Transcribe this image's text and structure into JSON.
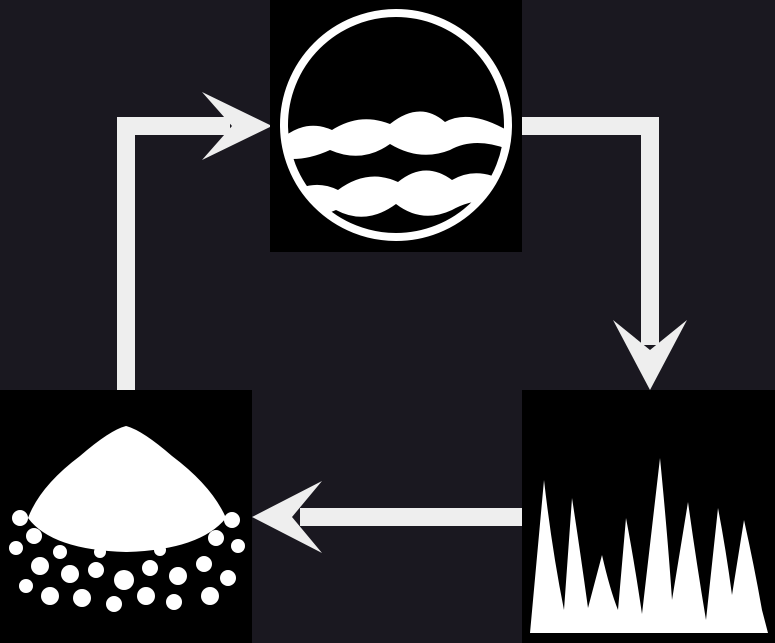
{
  "diagram": {
    "type": "cycle",
    "background_color": "#1a1820",
    "arrow_color": "#eeeeee",
    "nodes": [
      {
        "id": "water",
        "icon": "water-waves-icon"
      },
      {
        "id": "grass",
        "icon": "grass-icon"
      },
      {
        "id": "salt",
        "icon": "salt-pile-icon"
      }
    ],
    "edges": [
      {
        "from": "water",
        "to": "grass"
      },
      {
        "from": "grass",
        "to": "salt"
      },
      {
        "from": "salt",
        "to": "water"
      }
    ]
  }
}
